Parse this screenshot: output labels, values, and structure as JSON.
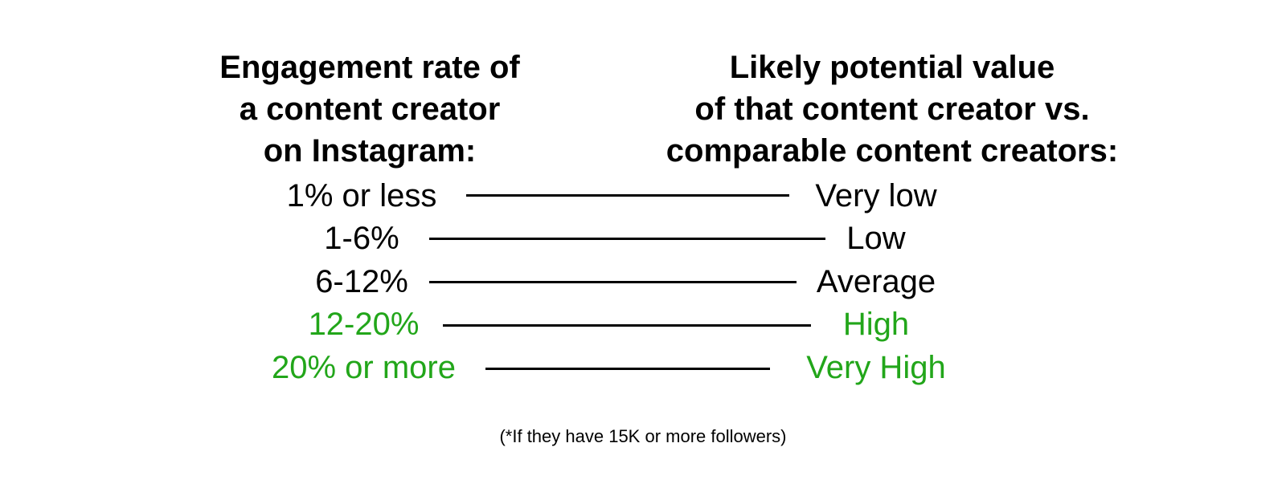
{
  "left_header": {
    "lines": [
      "Engagement rate of",
      "a content creator",
      "on Instagram:"
    ]
  },
  "right_header": {
    "lines": [
      "Likely potential value",
      "of that content creator vs.",
      "comparable content creators:"
    ]
  },
  "rows": [
    {
      "rate": "1% or less",
      "value": "Very low",
      "color": "#000000"
    },
    {
      "rate": "1-6%",
      "value": "Low",
      "color": "#000000"
    },
    {
      "rate": "6-12%",
      "value": "Average",
      "color": "#000000"
    },
    {
      "rate": "12-20%",
      "value": "High",
      "color": "#22a61a"
    },
    {
      "rate": "20% or more",
      "value": "Very High",
      "color": "#22a61a"
    }
  ],
  "footnote": "(*If they have 15K or more followers)"
}
